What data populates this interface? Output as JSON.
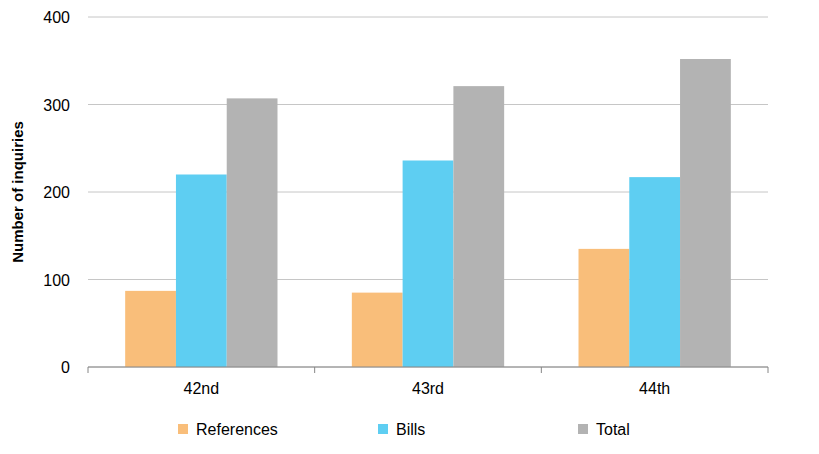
{
  "chart_data": {
    "type": "bar",
    "y_label": "Number of inquiries",
    "categories": [
      "42nd",
      "43rd",
      "44th"
    ],
    "series": [
      {
        "name": "References",
        "color": "#f9be7a",
        "values": [
          87,
          85,
          135
        ]
      },
      {
        "name": "Bills",
        "color": "#5ecef2",
        "values": [
          220,
          236,
          217
        ]
      },
      {
        "name": "Total",
        "color": "#b3b3b3",
        "values": [
          307,
          321,
          352
        ]
      }
    ],
    "ylim": [
      0,
      400
    ],
    "yticks": [
      0,
      100,
      200,
      300,
      400
    ],
    "grid": true,
    "legend": "bottom"
  }
}
